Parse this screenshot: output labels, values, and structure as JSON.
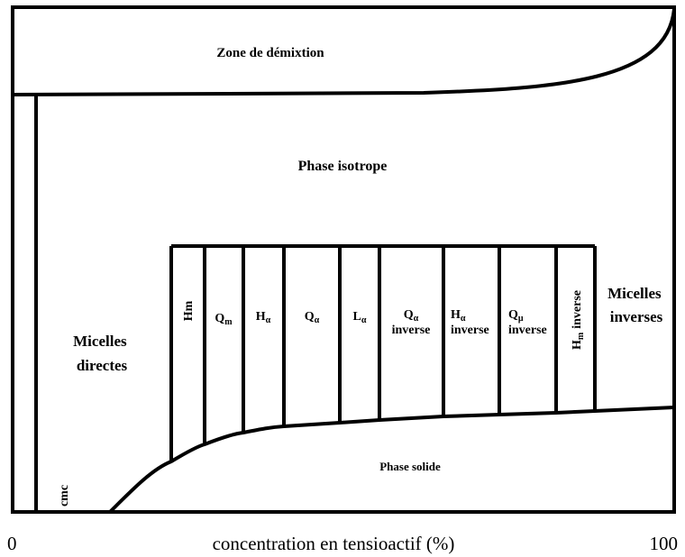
{
  "zone_demixtion": "Zone de démixtion",
  "phase_isotrope": "Phase isotrope",
  "micelles_directes": [
    "Micelles",
    "directes"
  ],
  "micelles_inverses": [
    "Micelles",
    "inverses"
  ],
  "phase_solide": "Phase solide",
  "cmc": "cmc",
  "phases": [
    {
      "main": "Hm"
    },
    {
      "main": "Q",
      "sub": "m"
    },
    {
      "main": "H",
      "sub": "α"
    },
    {
      "main": "Q",
      "sub": "α"
    },
    {
      "main": "L",
      "sub": "α"
    },
    {
      "main": "Q",
      "sub": "α",
      "suffix": "inverse"
    },
    {
      "main": "H",
      "sub": "α",
      "suffix": "inverse"
    },
    {
      "main": "Q",
      "sub": "μ",
      "suffix": "inverse"
    },
    {
      "main": "H",
      "sub": "m",
      "suffix": "inverse"
    }
  ],
  "axis": {
    "min": "0",
    "label": "concentration en tensioactif (%)",
    "max": "100"
  }
}
